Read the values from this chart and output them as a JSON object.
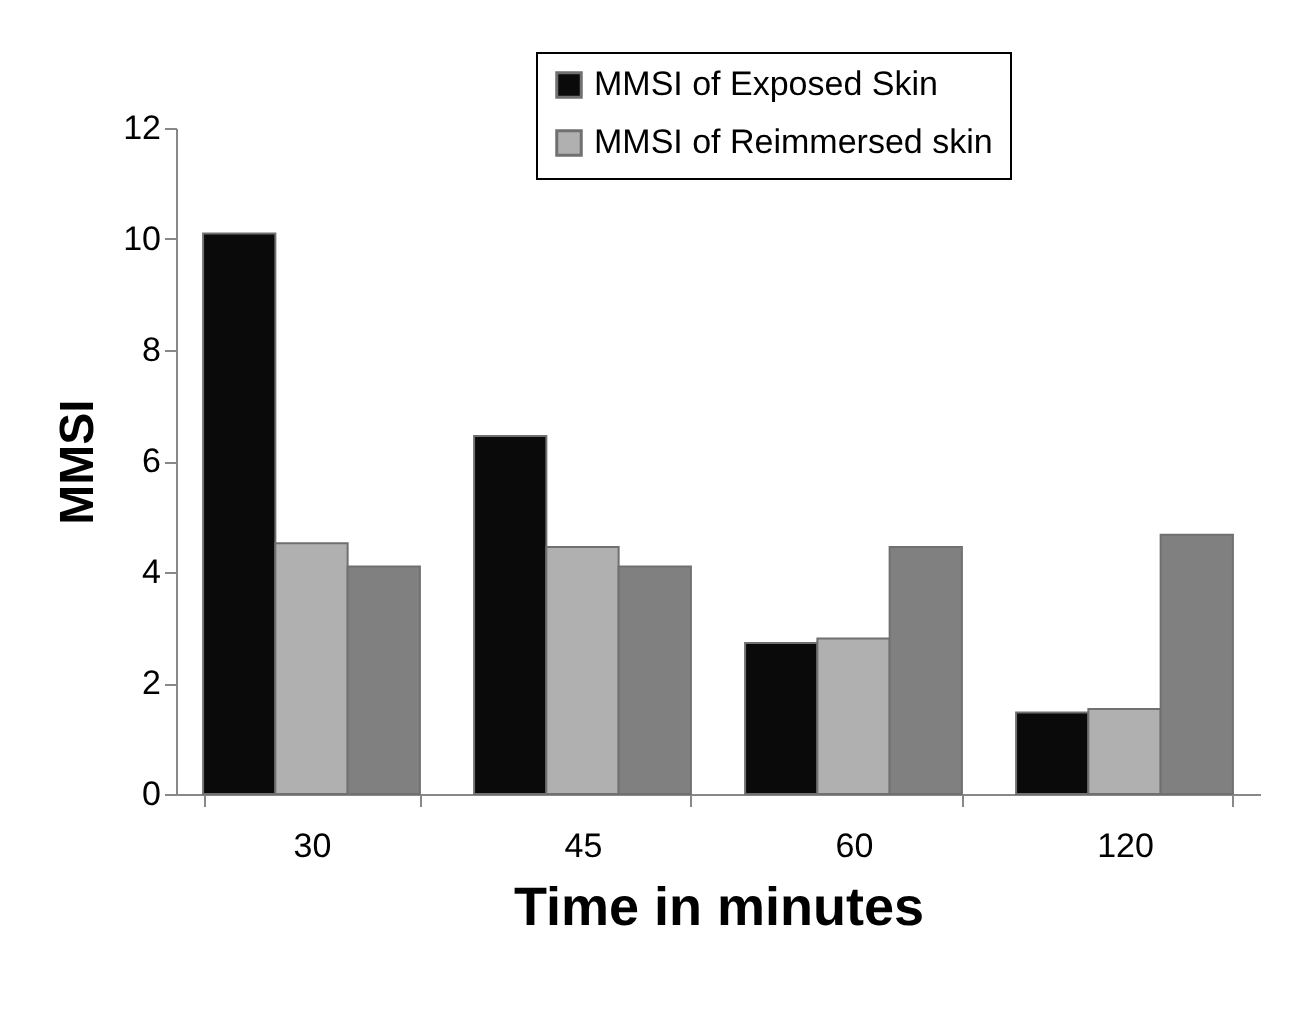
{
  "chart_data": {
    "type": "bar",
    "xlabel": "Time in minutes",
    "ylabel": "MMSI",
    "categories": [
      "30",
      "45",
      "60",
      "120"
    ],
    "series": [
      {
        "name": "MMSI of Exposed Skin",
        "color": "#0a0a0a",
        "values": [
          10.1,
          6.45,
          2.72,
          1.47
        ]
      },
      {
        "name": "MMSI of Reimmersed skin",
        "color": "#b0b0b0",
        "values": [
          4.52,
          4.45,
          2.8,
          1.53
        ]
      },
      {
        "color": "#808080",
        "values": [
          4.1,
          4.1,
          4.45,
          4.67
        ]
      }
    ],
    "ylim": [
      0,
      12
    ],
    "yticks": [
      0,
      2,
      4,
      6,
      8,
      10,
      12
    ],
    "grid": false,
    "legend": "top"
  }
}
